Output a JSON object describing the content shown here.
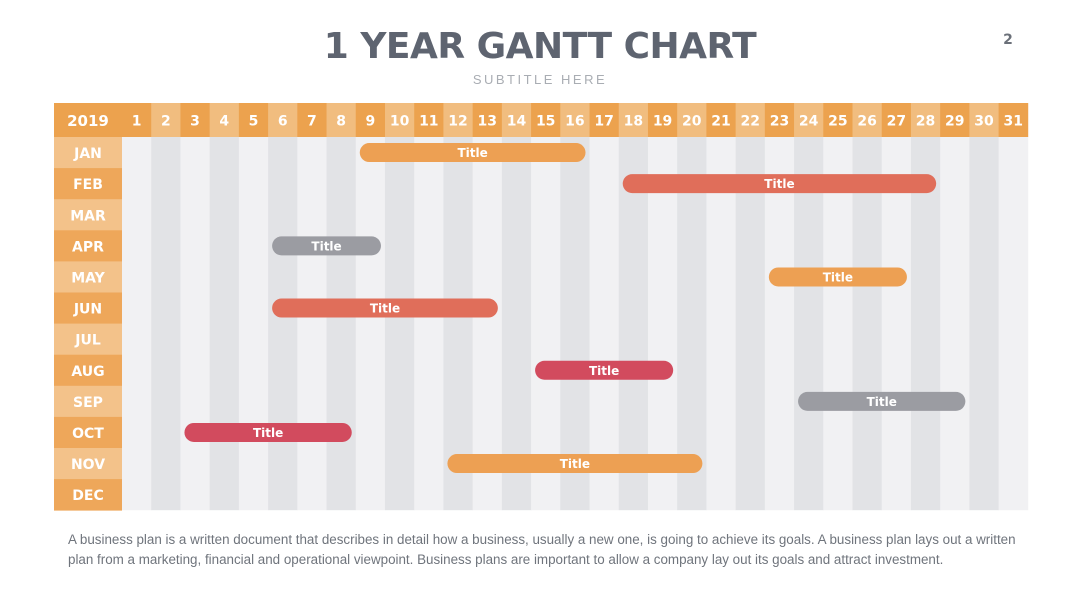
{
  "page": {
    "title": "1 YEAR GANTT CHART",
    "subtitle": "SUBTITLE HERE",
    "page_number": "2",
    "description": "A business plan is a written document that describes in detail how a business, usually a new one, is going to achieve its goals. A business plan lays out a written plan from a marketing, financial and operational viewpoint. Business plans are important to allow a company lay out its goals and attract investment."
  },
  "colors": {
    "header_orange": "#eca24e",
    "header_day_light": "#f1bd7f",
    "month_dark": "#eea75a",
    "month_light": "#f3c28a",
    "col_light": "#f1f1f3",
    "col_dark": "#e2e3e6",
    "bar_orange": "#eda053",
    "bar_red": "#e06e5a",
    "bar_gray": "#9b9ca2",
    "bar_crimson": "#d24b5e"
  },
  "chart_data": {
    "type": "gantt",
    "year_label": "2019",
    "days": [
      "1",
      "2",
      "3",
      "4",
      "5",
      "6",
      "7",
      "8",
      "9",
      "10",
      "11",
      "12",
      "13",
      "14",
      "15",
      "16",
      "17",
      "18",
      "19",
      "20",
      "21",
      "22",
      "23",
      "24",
      "25",
      "26",
      "27",
      "28",
      "29",
      "30",
      "31"
    ],
    "months": [
      "JAN",
      "FEB",
      "MAR",
      "APR",
      "MAY",
      "JUN",
      "JUL",
      "AUG",
      "SEP",
      "OCT",
      "NOV",
      "DEC"
    ],
    "tasks": [
      {
        "month": "JAN",
        "label": "Title",
        "start_day": 9,
        "end_day": 16,
        "color": "#eda053"
      },
      {
        "month": "FEB",
        "label": "Title",
        "start_day": 18,
        "end_day": 28,
        "color": "#e06e5a"
      },
      {
        "month": "APR",
        "label": "Title",
        "start_day": 6,
        "end_day": 9,
        "color": "#9b9ca2"
      },
      {
        "month": "MAY",
        "label": "Title",
        "start_day": 23,
        "end_day": 27,
        "color": "#eda053"
      },
      {
        "month": "JUN",
        "label": "Title",
        "start_day": 6,
        "end_day": 13,
        "color": "#e06e5a"
      },
      {
        "month": "AUG",
        "label": "Title",
        "start_day": 15,
        "end_day": 19,
        "color": "#d24b5e"
      },
      {
        "month": "SEP",
        "label": "Title",
        "start_day": 24,
        "end_day": 29,
        "color": "#9b9ca2"
      },
      {
        "month": "OCT",
        "label": "Title",
        "start_day": 3,
        "end_day": 8,
        "color": "#d24b5e"
      },
      {
        "month": "NOV",
        "label": "Title",
        "start_day": 12,
        "end_day": 20,
        "color": "#eda053"
      }
    ]
  }
}
